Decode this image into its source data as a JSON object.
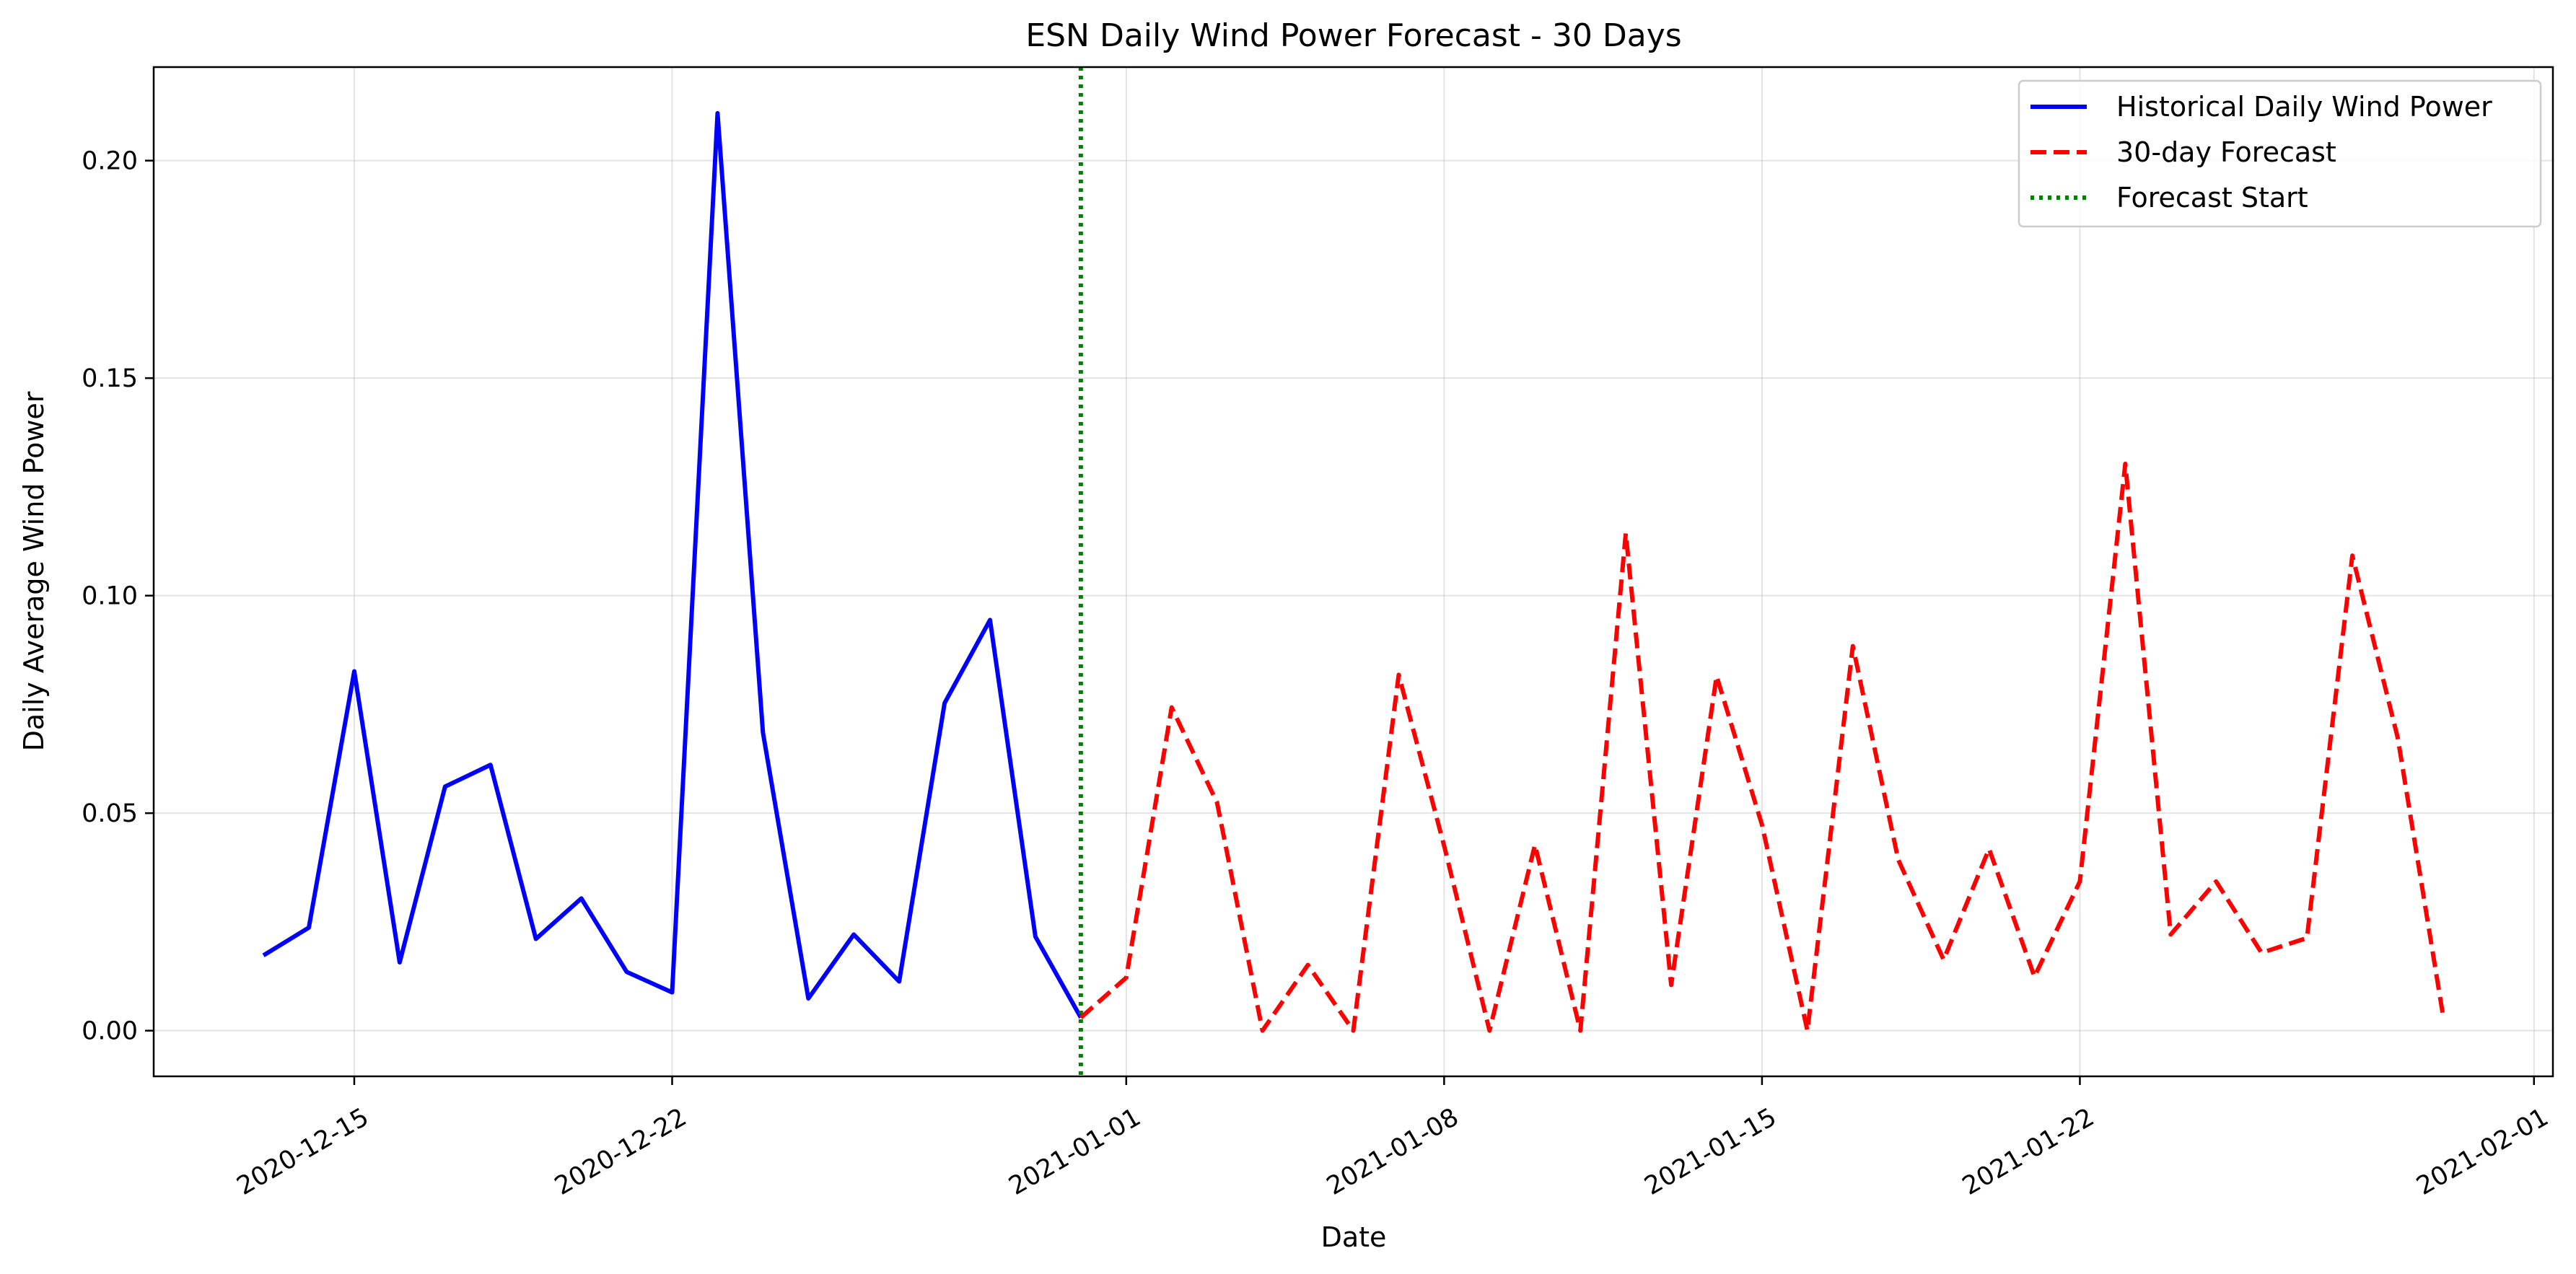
{
  "chart_data": {
    "type": "line",
    "title": "ESN Daily Wind Power Forecast - 30 Days",
    "xlabel": "Date",
    "ylabel": "Daily Average Wind Power",
    "xlim": [
      "2020-12-10T14:00",
      "2021-02-01T10:00"
    ],
    "ylim": [
      -0.0105,
      0.2215
    ],
    "x_ticks": [
      "2020-12-15",
      "2020-12-22",
      "2021-01-01",
      "2021-01-08",
      "2021-01-15",
      "2021-01-22",
      "2021-02-01"
    ],
    "y_ticks": [
      0.0,
      0.05,
      0.1,
      0.15,
      0.2
    ],
    "y_tick_labels": [
      "0.00",
      "0.05",
      "0.10",
      "0.15",
      "0.20"
    ],
    "grid": true,
    "legend_position": "top-right",
    "series": [
      {
        "name": "Historical Daily Wind Power",
        "color": "#0000ff",
        "style": "solid",
        "x": [
          "2020-12-13",
          "2020-12-14",
          "2020-12-15",
          "2020-12-16",
          "2020-12-17",
          "2020-12-18",
          "2020-12-19",
          "2020-12-20",
          "2020-12-21",
          "2020-12-22",
          "2020-12-23",
          "2020-12-24",
          "2020-12-25",
          "2020-12-26",
          "2020-12-27",
          "2020-12-28",
          "2020-12-29",
          "2020-12-30",
          "2020-12-31"
        ],
        "values": [
          0.0173,
          0.0237,
          0.0826,
          0.0157,
          0.0561,
          0.0611,
          0.0211,
          0.0304,
          0.0135,
          0.0088,
          0.2109,
          0.0685,
          0.0074,
          0.0221,
          0.0113,
          0.0753,
          0.0944,
          0.0216,
          0.003
        ]
      },
      {
        "name": "30-day Forecast",
        "color": "#ff0000",
        "style": "dashed",
        "x": [
          "2020-12-31",
          "2021-01-01",
          "2021-01-02",
          "2021-01-03",
          "2021-01-04",
          "2021-01-05",
          "2021-01-06",
          "2021-01-07",
          "2021-01-08",
          "2021-01-09",
          "2021-01-10",
          "2021-01-11",
          "2021-01-12",
          "2021-01-13",
          "2021-01-14",
          "2021-01-15",
          "2021-01-16",
          "2021-01-17",
          "2021-01-18",
          "2021-01-19",
          "2021-01-20",
          "2021-01-21",
          "2021-01-22",
          "2021-01-23",
          "2021-01-24",
          "2021-01-25",
          "2021-01-26",
          "2021-01-27",
          "2021-01-28",
          "2021-01-29",
          "2021-01-30"
        ],
        "values": [
          0.003,
          0.0122,
          0.0743,
          0.0524,
          0.0,
          0.0151,
          0.0,
          0.0818,
          0.0425,
          0.0,
          0.0427,
          0.0,
          0.1143,
          0.0105,
          0.0815,
          0.0473,
          0.0,
          0.0884,
          0.0393,
          0.0163,
          0.0418,
          0.0124,
          0.0343,
          0.1303,
          0.0221,
          0.0343,
          0.0179,
          0.0213,
          0.1092,
          0.0673,
          0.0033
        ]
      }
    ],
    "vlines": [
      {
        "name": "Forecast Start",
        "x": "2020-12-31",
        "color": "#008000",
        "style": "dotted"
      }
    ]
  }
}
